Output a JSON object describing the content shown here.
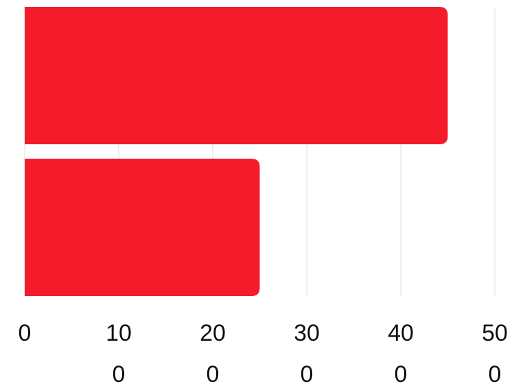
{
  "chart_data": {
    "type": "bar",
    "orientation": "horizontal",
    "categories": [
      null,
      null
    ],
    "values": [
      450,
      250
    ],
    "color": "#f41c2a",
    "xlim": [
      0,
      500
    ],
    "xticks": [
      0,
      100,
      200,
      300,
      400,
      500
    ],
    "grid": true
  }
}
